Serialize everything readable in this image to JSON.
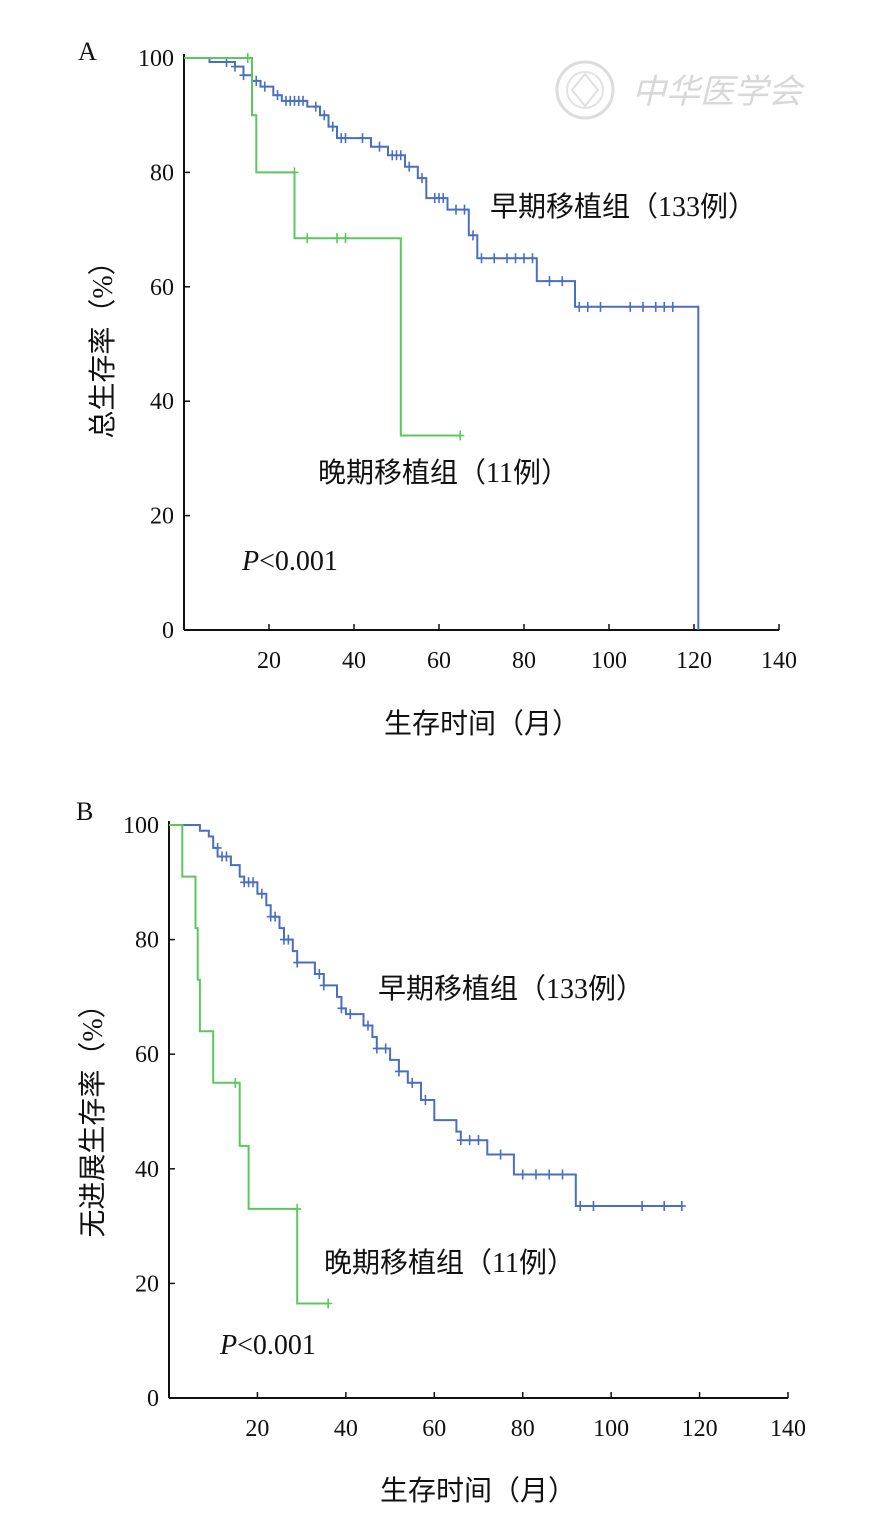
{
  "watermark": {
    "text": "中华医学会",
    "icon": "society-seal-icon"
  },
  "chart_data": [
    {
      "type": "line",
      "panel": "A",
      "xlabel": "生存时间（月）",
      "ylabel": "总生存率（%）",
      "xlim": [
        0,
        140
      ],
      "ylim": [
        0,
        100
      ],
      "xticks": [
        20,
        40,
        60,
        80,
        100,
        120,
        140
      ],
      "yticks": [
        0,
        20,
        40,
        60,
        80,
        100
      ],
      "annotation": {
        "italic": "P",
        "rest": "<0.001"
      },
      "series": [
        {
          "name": "早期移植组（133例）",
          "color": "#4a6fc0",
          "points": [
            [
              0,
              100
            ],
            [
              6,
              100
            ],
            [
              6,
              99.3
            ],
            [
              12,
              99.3
            ],
            [
              12,
              98.5
            ],
            [
              14,
              98.5
            ],
            [
              14,
              97
            ],
            [
              16,
              97
            ],
            [
              16,
              96
            ],
            [
              18,
              96
            ],
            [
              18,
              95
            ],
            [
              21,
              95
            ],
            [
              21,
              93.5
            ],
            [
              23,
              93.5
            ],
            [
              23,
              92.5
            ],
            [
              29,
              92.5
            ],
            [
              29,
              91.5
            ],
            [
              32,
              91.5
            ],
            [
              32,
              90
            ],
            [
              34,
              90
            ],
            [
              34,
              88
            ],
            [
              36,
              88
            ],
            [
              36,
              86
            ],
            [
              44,
              86
            ],
            [
              44,
              84.5
            ],
            [
              48,
              84.5
            ],
            [
              48,
              83
            ],
            [
              52,
              83
            ],
            [
              52,
              81
            ],
            [
              55,
              81
            ],
            [
              55,
              79
            ],
            [
              57,
              79
            ],
            [
              57,
              75.5
            ],
            [
              62,
              75.5
            ],
            [
              62,
              73.5
            ],
            [
              67,
              73.5
            ],
            [
              67,
              69
            ],
            [
              69,
              69
            ],
            [
              69,
              65
            ],
            [
              83,
              65
            ],
            [
              83,
              61
            ],
            [
              92,
              61
            ],
            [
              92,
              56.5
            ],
            [
              121,
              56.5
            ],
            [
              121,
              0
            ]
          ],
          "censors": [
            [
              10,
              99.3
            ],
            [
              12,
              98.5
            ],
            [
              14,
              97
            ],
            [
              17,
              96
            ],
            [
              19,
              95
            ],
            [
              22,
              93.5
            ],
            [
              24,
              92.5
            ],
            [
              25,
              92.5
            ],
            [
              26,
              92.5
            ],
            [
              27,
              92.5
            ],
            [
              28,
              92.5
            ],
            [
              31,
              91.5
            ],
            [
              33,
              90
            ],
            [
              35,
              88
            ],
            [
              37,
              86
            ],
            [
              38,
              86
            ],
            [
              42,
              86
            ],
            [
              46,
              84.5
            ],
            [
              49,
              83
            ],
            [
              50,
              83
            ],
            [
              51,
              83
            ],
            [
              53,
              81
            ],
            [
              56,
              79
            ],
            [
              59,
              75.5
            ],
            [
              60,
              75.5
            ],
            [
              61,
              75.5
            ],
            [
              64,
              73.5
            ],
            [
              66,
              73.5
            ],
            [
              68,
              69
            ],
            [
              70,
              65
            ],
            [
              73,
              65
            ],
            [
              76,
              65
            ],
            [
              78,
              65
            ],
            [
              80,
              65
            ],
            [
              82,
              65
            ],
            [
              86,
              61
            ],
            [
              89,
              61
            ],
            [
              93,
              56.5
            ],
            [
              95,
              56.5
            ],
            [
              98,
              56.5
            ],
            [
              105,
              56.5
            ],
            [
              108,
              56.5
            ],
            [
              111,
              56.5
            ],
            [
              113,
              56.5
            ],
            [
              115,
              56.5
            ]
          ]
        },
        {
          "name": "晚期移植组（11例）",
          "color": "#5cc85c",
          "points": [
            [
              0,
              100
            ],
            [
              16,
              100
            ],
            [
              16,
              90
            ],
            [
              17,
              90
            ],
            [
              17,
              80
            ],
            [
              26,
              80
            ],
            [
              26,
              68.5
            ],
            [
              51,
              68.5
            ],
            [
              51,
              34
            ],
            [
              65,
              34
            ]
          ],
          "censors": [
            [
              15,
              100
            ],
            [
              26,
              80
            ],
            [
              29,
              68.5
            ],
            [
              36,
              68.5
            ],
            [
              38,
              68.5
            ],
            [
              65,
              34
            ]
          ]
        }
      ]
    },
    {
      "type": "line",
      "panel": "B",
      "xlabel": "生存时间（月）",
      "ylabel": "无进展生存率（%）",
      "xlim": [
        0,
        140
      ],
      "ylim": [
        0,
        100
      ],
      "xticks": [
        20,
        40,
        60,
        80,
        100,
        120,
        140
      ],
      "yticks": [
        0,
        20,
        40,
        60,
        80,
        100
      ],
      "annotation": {
        "italic": "P",
        "rest": "<0.001"
      },
      "series": [
        {
          "name": "早期移植组（133例）",
          "color": "#4a6fc0",
          "points": [
            [
              0,
              100
            ],
            [
              7,
              100
            ],
            [
              7,
              99
            ],
            [
              9,
              99
            ],
            [
              9,
              98
            ],
            [
              10,
              98
            ],
            [
              10,
              96
            ],
            [
              11,
              96
            ],
            [
              11,
              94.5
            ],
            [
              14,
              94.5
            ],
            [
              14,
              93
            ],
            [
              16,
              93
            ],
            [
              16,
              91
            ],
            [
              17,
              91
            ],
            [
              17,
              90
            ],
            [
              20,
              90
            ],
            [
              20,
              88
            ],
            [
              22,
              88
            ],
            [
              22,
              86
            ],
            [
              23,
              86
            ],
            [
              23,
              84
            ],
            [
              25,
              84
            ],
            [
              25,
              82
            ],
            [
              26,
              82
            ],
            [
              26,
              80
            ],
            [
              28,
              80
            ],
            [
              28,
              78
            ],
            [
              29,
              78
            ],
            [
              29,
              76
            ],
            [
              33,
              76
            ],
            [
              33,
              74
            ],
            [
              35,
              74
            ],
            [
              35,
              72
            ],
            [
              38,
              72
            ],
            [
              38,
              70
            ],
            [
              39,
              70
            ],
            [
              39,
              68
            ],
            [
              40,
              68
            ],
            [
              40,
              67
            ],
            [
              44,
              67
            ],
            [
              44,
              65
            ],
            [
              46,
              65
            ],
            [
              46,
              63
            ],
            [
              47,
              63
            ],
            [
              47,
              61
            ],
            [
              50,
              61
            ],
            [
              50,
              59
            ],
            [
              52,
              59
            ],
            [
              52,
              57
            ],
            [
              54,
              57
            ],
            [
              54,
              55
            ],
            [
              57,
              55
            ],
            [
              57,
              52
            ],
            [
              60,
              52
            ],
            [
              60,
              48.5
            ],
            [
              65,
              48.5
            ],
            [
              65,
              46.5
            ],
            [
              66,
              46.5
            ],
            [
              66,
              45
            ],
            [
              72,
              45
            ],
            [
              72,
              42.5
            ],
            [
              78,
              42.5
            ],
            [
              78,
              39
            ],
            [
              92,
              39
            ],
            [
              92,
              33.5
            ],
            [
              116,
              33.5
            ]
          ],
          "censors": [
            [
              11,
              96
            ],
            [
              12,
              94.5
            ],
            [
              13,
              94.5
            ],
            [
              17,
              90
            ],
            [
              18,
              90
            ],
            [
              19,
              90
            ],
            [
              21,
              88
            ],
            [
              23,
              84
            ],
            [
              24,
              84
            ],
            [
              26,
              80
            ],
            [
              27,
              80
            ],
            [
              29,
              76
            ],
            [
              34,
              74
            ],
            [
              35,
              72
            ],
            [
              39,
              68
            ],
            [
              41,
              67
            ],
            [
              45,
              65
            ],
            [
              47,
              61
            ],
            [
              49,
              61
            ],
            [
              52,
              57
            ],
            [
              55,
              55
            ],
            [
              58,
              52
            ],
            [
              66,
              45
            ],
            [
              68,
              45
            ],
            [
              70,
              45
            ],
            [
              75,
              42.5
            ],
            [
              80,
              39
            ],
            [
              83,
              39
            ],
            [
              86,
              39
            ],
            [
              89,
              39
            ],
            [
              93,
              33.5
            ],
            [
              96,
              33.5
            ],
            [
              107,
              33.5
            ],
            [
              112,
              33.5
            ],
            [
              116,
              33.5
            ]
          ]
        },
        {
          "name": "晚期移植组（11例）",
          "color": "#5cc85c",
          "points": [
            [
              0,
              100
            ],
            [
              3,
              100
            ],
            [
              3,
              91
            ],
            [
              6,
              91
            ],
            [
              6,
              82
            ],
            [
              6.5,
              82
            ],
            [
              6.5,
              73
            ],
            [
              7,
              73
            ],
            [
              7,
              64
            ],
            [
              10,
              64
            ],
            [
              10,
              55
            ],
            [
              16,
              55
            ],
            [
              16,
              44
            ],
            [
              18,
              44
            ],
            [
              18,
              33
            ],
            [
              29,
              33
            ],
            [
              29,
              16.5
            ],
            [
              36,
              16.5
            ]
          ],
          "censors": [
            [
              15,
              55
            ],
            [
              29,
              33
            ],
            [
              36,
              16.5
            ]
          ]
        }
      ]
    }
  ]
}
